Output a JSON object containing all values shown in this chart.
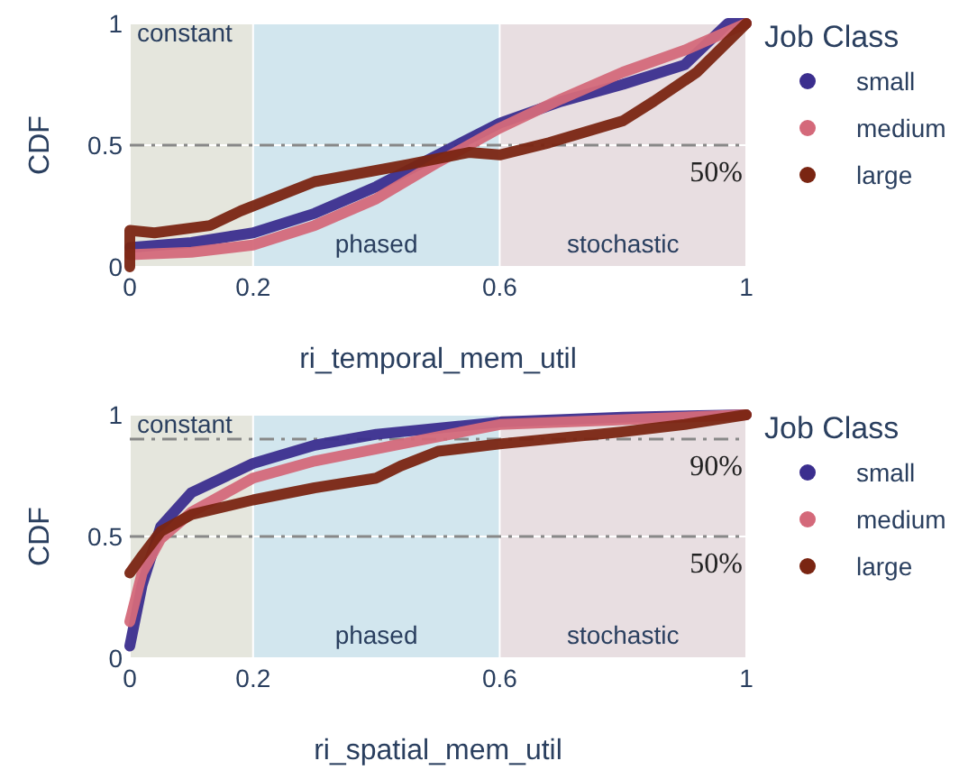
{
  "chart_data": [
    {
      "type": "line",
      "xlabel": "ri_temporal_mem_util",
      "ylabel": "CDF",
      "legend_title": "Job Class",
      "legend": "right",
      "grid": true,
      "xlim": [
        0,
        1
      ],
      "ylim": [
        0,
        1
      ],
      "xticks": [
        0,
        0.2,
        0.6,
        1
      ],
      "yticks": [
        0,
        0.5,
        1
      ],
      "series": [
        {
          "name": "small",
          "color": "#3b2e8e",
          "x": [
            0,
            0.1,
            0.2,
            0.3,
            0.4,
            0.53,
            0.6,
            0.7,
            0.8,
            0.9,
            0.97,
            1
          ],
          "values": [
            0.08,
            0.1,
            0.14,
            0.22,
            0.33,
            0.5,
            0.59,
            0.68,
            0.75,
            0.83,
            1,
            1
          ]
        },
        {
          "name": "medium",
          "color": "#d4697a",
          "x": [
            0,
            0.1,
            0.2,
            0.3,
            0.4,
            0.5,
            0.55,
            0.6,
            0.7,
            0.8,
            0.9,
            1
          ],
          "values": [
            0.05,
            0.06,
            0.09,
            0.17,
            0.28,
            0.43,
            0.5,
            0.57,
            0.69,
            0.8,
            0.89,
            1
          ]
        },
        {
          "name": "large",
          "color": "#7a2512",
          "x": [
            0,
            0,
            0.04,
            0.13,
            0.18,
            0.3,
            0.45,
            0.55,
            0.6,
            0.68,
            0.8,
            0.85,
            0.92,
            1
          ],
          "values": [
            0,
            0.15,
            0.14,
            0.17,
            0.23,
            0.35,
            0.42,
            0.47,
            0.46,
            0.51,
            0.6,
            0.68,
            0.8,
            1
          ]
        }
      ],
      "bands": [
        {
          "axis": "x",
          "from": 0,
          "to": 0.2,
          "label": "constant",
          "color": "#e5e6dd"
        },
        {
          "axis": "x",
          "from": 0.2,
          "to": 0.6,
          "label": "phased",
          "color": "#d2e6ee"
        },
        {
          "axis": "x",
          "from": 0.6,
          "to": 1,
          "label": "stochastic",
          "color": "#e8dee1"
        }
      ],
      "ref_lines": [
        {
          "axis": "y",
          "value": 0.5,
          "label": "50%",
          "color": "#888888",
          "line_style": "dashdot"
        }
      ]
    },
    {
      "type": "line",
      "xlabel": "ri_spatial_mem_util",
      "ylabel": "CDF",
      "legend_title": "Job Class",
      "legend": "right",
      "grid": true,
      "xlim": [
        0,
        1
      ],
      "ylim": [
        0,
        1
      ],
      "xticks": [
        0,
        0.2,
        0.6,
        1
      ],
      "yticks": [
        0,
        0.5,
        1
      ],
      "series": [
        {
          "name": "small",
          "color": "#3b2e8e",
          "x": [
            0,
            0.02,
            0.05,
            0.1,
            0.2,
            0.3,
            0.4,
            0.6,
            0.8,
            1
          ],
          "values": [
            0.05,
            0.3,
            0.54,
            0.68,
            0.8,
            0.875,
            0.92,
            0.97,
            0.99,
            1
          ]
        },
        {
          "name": "medium",
          "color": "#d4697a",
          "x": [
            0,
            0.02,
            0.05,
            0.1,
            0.2,
            0.3,
            0.4,
            0.6,
            0.8,
            1
          ],
          "values": [
            0.15,
            0.35,
            0.49,
            0.6,
            0.74,
            0.81,
            0.86,
            0.96,
            0.98,
            1
          ]
        },
        {
          "name": "large",
          "color": "#7a2512",
          "x": [
            0,
            0.02,
            0.05,
            0.1,
            0.2,
            0.3,
            0.4,
            0.44,
            0.5,
            0.6,
            0.8,
            0.9,
            1
          ],
          "values": [
            0.35,
            0.42,
            0.52,
            0.59,
            0.65,
            0.7,
            0.74,
            0.79,
            0.85,
            0.88,
            0.93,
            0.96,
            1
          ]
        }
      ],
      "bands": [
        {
          "axis": "x",
          "from": 0,
          "to": 0.2,
          "label": "constant",
          "color": "#e5e6dd"
        },
        {
          "axis": "x",
          "from": 0.2,
          "to": 0.6,
          "label": "phased",
          "color": "#d2e6ee"
        },
        {
          "axis": "x",
          "from": 0.6,
          "to": 1,
          "label": "stochastic",
          "color": "#e8dee1"
        }
      ],
      "ref_lines": [
        {
          "axis": "y",
          "value": 0.9,
          "label": "90%",
          "color": "#888888",
          "line_style": "dashdot"
        },
        {
          "axis": "y",
          "value": 0.5,
          "label": "50%",
          "color": "#888888",
          "line_style": "dashdot"
        }
      ]
    }
  ]
}
